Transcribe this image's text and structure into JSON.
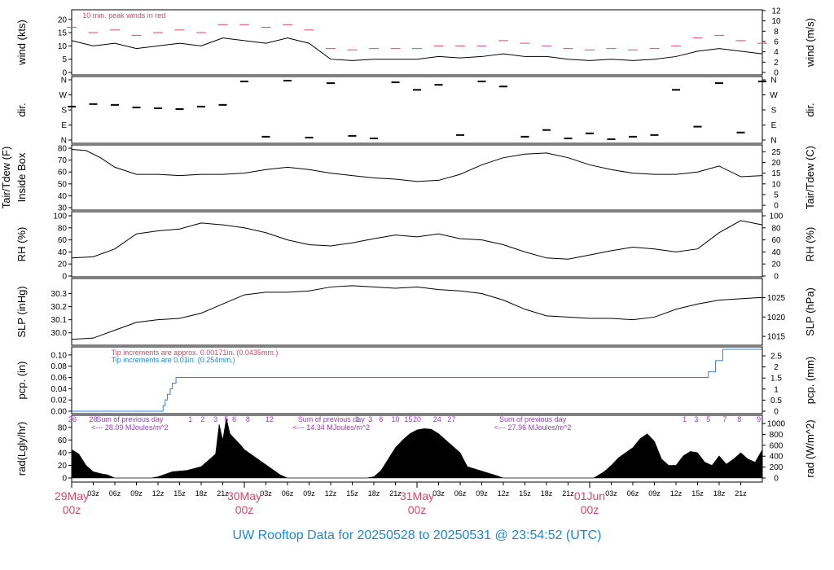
{
  "title": "UW Rooftop Data for 20250528  to  20250531 @ 23:54:52  (UTC)",
  "colors": {
    "series": "#000000",
    "peak": "#d64a6b",
    "tip_old": "#d64a6b",
    "tip_new": "#1e88d8",
    "pcp_line": "#3b7dd8",
    "annotation": "#9a3bc9",
    "date_label": "#d64a6b",
    "title": "#1e88d8"
  },
  "chart_data": [
    {
      "type": "line",
      "panel": "wind",
      "ylabel": "wind (kts)",
      "ylabel_right": "wind (m/s)",
      "ylim": [
        0,
        23
      ],
      "yticks": [
        0,
        5,
        10,
        15,
        20
      ],
      "yticks_right": [
        0,
        2,
        4,
        6,
        8,
        10,
        12
      ],
      "annotation": "10 min. peak winds in red",
      "series": [
        {
          "name": "wind",
          "x": [
            0,
            3,
            6,
            9,
            12,
            15,
            18,
            21,
            24,
            27,
            30,
            33,
            36,
            39,
            42,
            45,
            48,
            51,
            54,
            57,
            60,
            63,
            66,
            69,
            72,
            75,
            78,
            81,
            84,
            87,
            90,
            93,
            96
          ],
          "values": [
            12,
            10,
            11,
            9,
            10,
            11,
            10,
            13,
            12,
            11,
            13,
            11,
            5,
            4.5,
            5,
            5,
            5,
            6,
            5.5,
            6,
            7,
            6,
            6,
            5,
            4.5,
            5,
            4.5,
            5,
            6,
            8,
            9,
            8,
            7
          ]
        },
        {
          "name": "10 min. peak winds",
          "x": [
            0,
            3,
            6,
            9,
            12,
            15,
            18,
            21,
            24,
            27,
            30,
            33,
            36,
            39,
            42,
            45,
            48,
            51,
            54,
            57,
            60,
            63,
            66,
            69,
            72,
            75,
            78,
            81,
            84,
            87,
            90,
            93,
            96
          ],
          "values": [
            17,
            15,
            16,
            14,
            15,
            16,
            15,
            18,
            18,
            17,
            18,
            16,
            9,
            8.5,
            9,
            9,
            9,
            10,
            10,
            10,
            12,
            11,
            10,
            9,
            8.5,
            9,
            8.5,
            9,
            10,
            13,
            14,
            12,
            11
          ]
        }
      ]
    },
    {
      "type": "scatter",
      "panel": "dir",
      "ylabel": "dir.",
      "ylabel_right": "dir.",
      "yticks": [
        "N",
        "E",
        "S",
        "W",
        "N"
      ],
      "ylim": [
        0,
        360
      ],
      "x": [
        0,
        3,
        6,
        9,
        12,
        15,
        18,
        21,
        24,
        27,
        30,
        33,
        36,
        39,
        42,
        45,
        48,
        51,
        54,
        57,
        60,
        63,
        66,
        69,
        72,
        75,
        78,
        81,
        84,
        87,
        90,
        93,
        96
      ],
      "values": [
        200,
        215,
        210,
        195,
        190,
        185,
        200,
        210,
        350,
        20,
        355,
        15,
        340,
        25,
        10,
        345,
        300,
        330,
        30,
        350,
        320,
        20,
        60,
        10,
        40,
        5,
        20,
        30,
        300,
        80,
        340,
        45,
        350
      ]
    },
    {
      "type": "line",
      "panel": "temperature",
      "ylabel": "Tair/Tdew (F)",
      "ylabel2": "Inside Box",
      "ylabel_right": "Tair/Tdew (C)",
      "ylim": [
        30,
        80
      ],
      "yticks": [
        30,
        40,
        50,
        60,
        70,
        80
      ],
      "yticks_right": [
        0,
        5,
        10,
        15,
        20,
        25
      ],
      "x": [
        0,
        2,
        4,
        6,
        9,
        12,
        15,
        18,
        21,
        24,
        27,
        30,
        33,
        36,
        39,
        42,
        45,
        48,
        51,
        54,
        57,
        60,
        63,
        66,
        69,
        72,
        75,
        78,
        81,
        84,
        87,
        90,
        93,
        96
      ],
      "values": [
        79,
        78,
        72,
        64,
        58,
        58,
        57,
        58,
        58,
        59,
        62,
        64,
        62,
        59,
        57,
        55,
        54,
        52,
        53,
        58,
        66,
        72,
        75,
        76,
        72,
        66,
        62,
        59,
        58,
        58,
        60,
        65,
        56,
        57
      ]
    },
    {
      "type": "line",
      "panel": "rh",
      "ylabel": "RH (%)",
      "ylabel_right": "RH (%)",
      "ylim": [
        0,
        100
      ],
      "yticks": [
        0,
        20,
        40,
        60,
        80,
        100
      ],
      "x": [
        0,
        3,
        6,
        9,
        12,
        15,
        18,
        21,
        24,
        27,
        30,
        33,
        36,
        39,
        42,
        45,
        48,
        51,
        54,
        57,
        60,
        63,
        66,
        69,
        72,
        75,
        78,
        81,
        84,
        87,
        90,
        93,
        96
      ],
      "values": [
        30,
        32,
        45,
        70,
        75,
        78,
        88,
        85,
        80,
        72,
        60,
        52,
        50,
        55,
        62,
        68,
        65,
        70,
        62,
        60,
        52,
        40,
        30,
        28,
        35,
        42,
        48,
        45,
        40,
        45,
        72,
        92,
        85
      ]
    },
    {
      "type": "line",
      "panel": "slp",
      "ylabel": "SLP (inHg)",
      "ylabel_right": "SLP (hPa)",
      "ylim": [
        29.93,
        30.39
      ],
      "yticks": [
        30.0,
        30.1,
        30.2,
        30.3
      ],
      "yticks_right": [
        1015,
        1020,
        1025
      ],
      "x": [
        0,
        3,
        6,
        9,
        12,
        15,
        18,
        21,
        24,
        27,
        30,
        33,
        36,
        39,
        42,
        45,
        48,
        51,
        54,
        57,
        60,
        63,
        66,
        69,
        72,
        75,
        78,
        81,
        84,
        87,
        90,
        93,
        96
      ],
      "values": [
        29.95,
        29.96,
        30.02,
        30.08,
        30.1,
        30.11,
        30.15,
        30.22,
        30.29,
        30.31,
        30.31,
        30.32,
        30.35,
        30.36,
        30.35,
        30.34,
        30.35,
        30.33,
        30.32,
        30.3,
        30.25,
        30.18,
        30.13,
        30.12,
        30.11,
        30.11,
        30.1,
        30.12,
        30.18,
        30.22,
        30.25,
        30.26,
        30.27
      ]
    },
    {
      "type": "line",
      "panel": "pcp",
      "ylabel": "pcp. (in)",
      "ylabel_right": "pcp. (mm)",
      "ylim": [
        0,
        0.11
      ],
      "yticks": [
        0.0,
        0.02,
        0.04,
        0.06,
        0.08,
        0.1
      ],
      "yticks_labels": [
        "0.00",
        "0.02",
        "0.04",
        "0.06",
        "0.08",
        "0.10"
      ],
      "yticks_right": [
        0,
        0.5,
        1,
        1.5,
        2,
        2.5
      ],
      "annotation_old": "Tip increments are approx. 0.00171in. (0.0435mm.)",
      "annotation_new": "Tip increments are 0.01in. (0.254mm.)",
      "x": [
        0,
        12.5,
        12.7,
        13.0,
        13.3,
        13.7,
        14.0,
        14.5,
        88.0,
        88.5,
        89.5,
        90.5,
        96.0
      ],
      "values": [
        0,
        0,
        0.01,
        0.02,
        0.03,
        0.04,
        0.05,
        0.06,
        0.06,
        0.07,
        0.09,
        0.11,
        0.11
      ]
    },
    {
      "type": "area",
      "panel": "rad",
      "ylabel": "rad(Lgly/hr)",
      "ylabel_right": "rad (W/m^2)",
      "ylim": [
        0,
        90
      ],
      "yticks": [
        0,
        20,
        40,
        60,
        80
      ],
      "yticks_right": [
        0,
        200,
        400,
        600,
        800,
        1000
      ],
      "x": [
        0,
        1,
        2,
        3,
        4,
        5,
        6,
        11,
        12,
        14,
        16,
        18,
        19,
        20,
        20.5,
        21,
        21.5,
        22,
        23,
        23.5,
        24,
        29,
        30,
        36,
        39,
        41,
        42,
        43,
        44,
        45,
        46,
        47,
        48,
        49,
        50,
        51,
        52,
        53,
        54,
        55,
        59,
        60,
        66,
        68,
        69,
        70,
        71,
        72,
        72.5,
        73,
        74,
        75,
        76,
        77,
        78,
        79,
        80,
        81,
        82,
        83,
        84,
        85,
        86,
        87,
        88,
        89,
        90,
        91,
        92,
        93,
        94,
        95,
        96
      ],
      "values": [
        45,
        38,
        20,
        10,
        7,
        5,
        0,
        0,
        2,
        10,
        12,
        18,
        28,
        38,
        85,
        60,
        95,
        70,
        58,
        52,
        45,
        5,
        0,
        0,
        0,
        0,
        2,
        12,
        30,
        48,
        60,
        70,
        76,
        78,
        77,
        70,
        60,
        50,
        40,
        18,
        4,
        0,
        0,
        0,
        0,
        0,
        0,
        0,
        0,
        3,
        10,
        20,
        32,
        40,
        48,
        62,
        70,
        58,
        30,
        20,
        20,
        35,
        42,
        40,
        25,
        20,
        35,
        22,
        30,
        40,
        30,
        25,
        45
      ]
    },
    {
      "type": "table",
      "panel": "rad-labels",
      "tip_counts": [
        {
          "x": 0.1,
          "label": "26"
        },
        {
          "x": 3.0,
          "label": "28"
        },
        {
          "x": 16.5,
          "label": "1"
        },
        {
          "x": 18.2,
          "label": "2"
        },
        {
          "x": 20.0,
          "label": "3"
        },
        {
          "x": 21.5,
          "label": "5"
        },
        {
          "x": 22.6,
          "label": "6"
        },
        {
          "x": 24.5,
          "label": "8"
        },
        {
          "x": 27.5,
          "label": "12"
        },
        {
          "x": 39.8,
          "label": "1"
        },
        {
          "x": 41.5,
          "label": "3"
        },
        {
          "x": 43.0,
          "label": "6"
        },
        {
          "x": 45.0,
          "label": "10"
        },
        {
          "x": 46.8,
          "label": "15"
        },
        {
          "x": 48.0,
          "label": "20"
        },
        {
          "x": 50.8,
          "label": "24"
        },
        {
          "x": 52.8,
          "label": "27"
        },
        {
          "x": 85.2,
          "label": "1"
        },
        {
          "x": 86.8,
          "label": "3"
        },
        {
          "x": 88.5,
          "label": "5"
        },
        {
          "x": 90.8,
          "label": "7"
        },
        {
          "x": 92.8,
          "label": "8"
        },
        {
          "x": 95.5,
          "label": "9"
        }
      ],
      "daily_sums": [
        {
          "x": 6.5,
          "line1": "Sum of previous day",
          "line2": "<--- 28.09 MJoules/m^2"
        },
        {
          "x": 34.5,
          "line1": "Sum of previous day",
          "line2": "<--- 14.34 MJoules/m^2"
        },
        {
          "x": 62.5,
          "line1": "Sum of previous day",
          "line2": "<--- 27.96 MJoules/m^2"
        }
      ]
    }
  ],
  "time_axis": {
    "range_hours": [
      0,
      96
    ],
    "hour_ticks": [
      {
        "x": 3,
        "label": "03z"
      },
      {
        "x": 6,
        "label": "06z"
      },
      {
        "x": 9,
        "label": "09z"
      },
      {
        "x": 12,
        "label": "12z"
      },
      {
        "x": 15,
        "label": "15z"
      },
      {
        "x": 18,
        "label": "18z"
      },
      {
        "x": 21,
        "label": "21z"
      },
      {
        "x": 27,
        "label": "03z"
      },
      {
        "x": 30,
        "label": "06z"
      },
      {
        "x": 33,
        "label": "09z"
      },
      {
        "x": 36,
        "label": "12z"
      },
      {
        "x": 39,
        "label": "15z"
      },
      {
        "x": 42,
        "label": "18z"
      },
      {
        "x": 45,
        "label": "21z"
      },
      {
        "x": 51,
        "label": "03z"
      },
      {
        "x": 54,
        "label": "06z"
      },
      {
        "x": 57,
        "label": "09z"
      },
      {
        "x": 60,
        "label": "12z"
      },
      {
        "x": 63,
        "label": "15z"
      },
      {
        "x": 66,
        "label": "18z"
      },
      {
        "x": 69,
        "label": "21z"
      },
      {
        "x": 75,
        "label": "03z"
      },
      {
        "x": 78,
        "label": "06z"
      },
      {
        "x": 81,
        "label": "09z"
      },
      {
        "x": 84,
        "label": "12z"
      },
      {
        "x": 87,
        "label": "15z"
      },
      {
        "x": 90,
        "label": "18z"
      },
      {
        "x": 93,
        "label": "21z"
      }
    ],
    "day_ticks": [
      {
        "x": 0,
        "day": "29May",
        "hour": "00z"
      },
      {
        "x": 24,
        "day": "30May",
        "hour": "00z"
      },
      {
        "x": 48,
        "day": "31May",
        "hour": "00z"
      },
      {
        "x": 72,
        "day": "01Jun",
        "hour": "00z"
      }
    ]
  }
}
